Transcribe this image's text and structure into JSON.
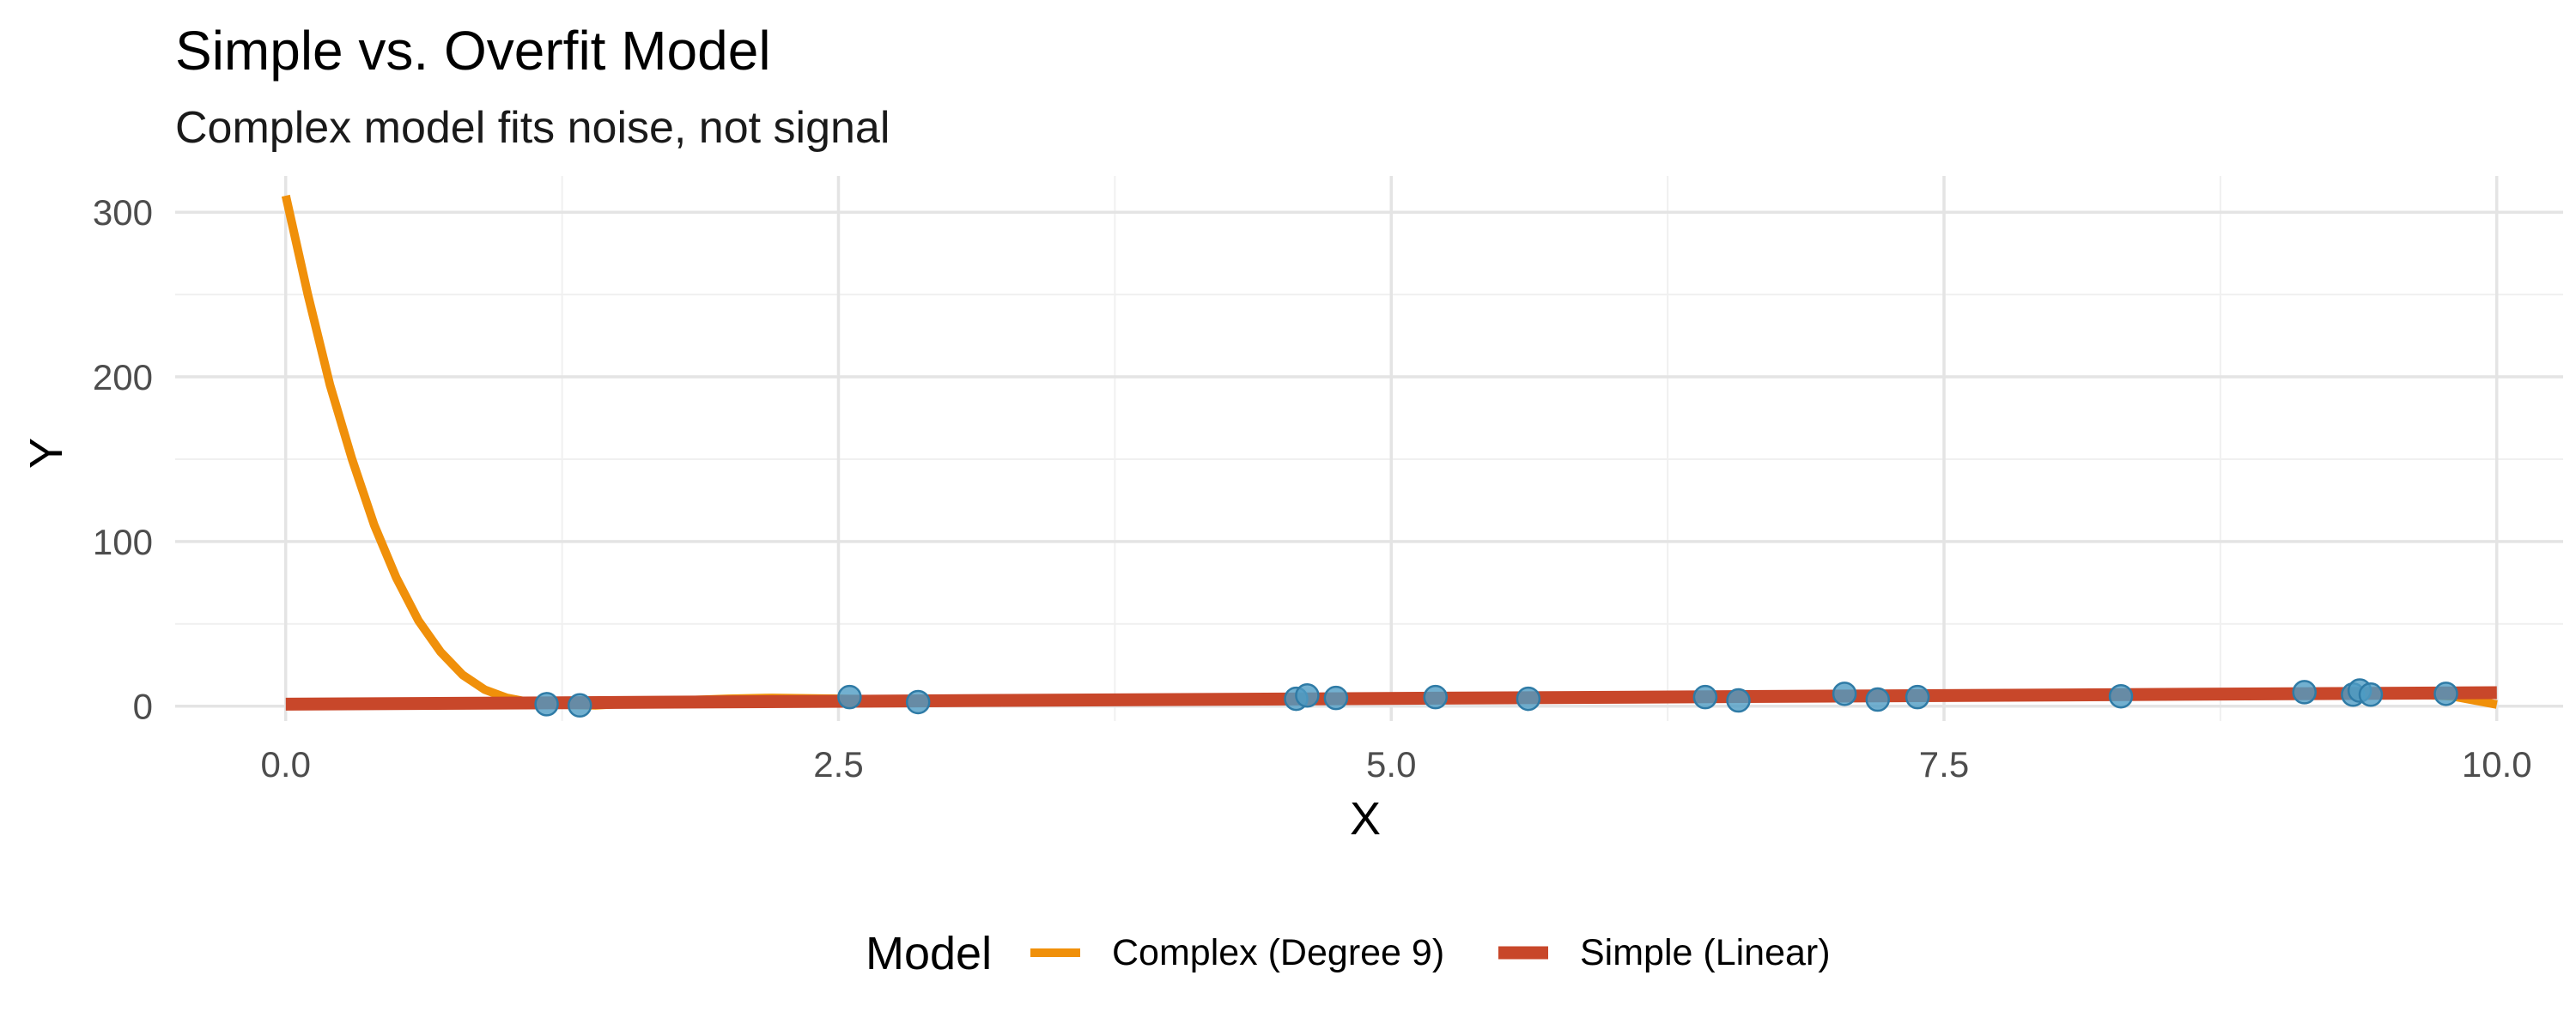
{
  "chart_data": {
    "type": "line",
    "title": "Simple vs. Overfit Model",
    "subtitle": "Complex model fits noise, not signal",
    "xlabel": "X",
    "ylabel": "Y",
    "xlim": [
      -0.5,
      10.3
    ],
    "ylim": [
      -9,
      322
    ],
    "x_ticks": [
      0.0,
      2.5,
      5.0,
      7.5,
      10.0
    ],
    "x_tick_labels": [
      "0.0",
      "2.5",
      "5.0",
      "7.5",
      "10.0"
    ],
    "y_ticks": [
      0,
      100,
      200,
      300
    ],
    "y_tick_labels": [
      "0",
      "100",
      "200",
      "300"
    ],
    "grid": true,
    "legend_position": "bottom",
    "legend_title": "Model",
    "points": {
      "color": "#4f9cc4",
      "x": [
        1.18,
        1.33,
        2.55,
        2.86,
        4.57,
        4.62,
        4.75,
        5.2,
        5.62,
        6.42,
        6.57,
        7.05,
        7.2,
        7.38,
        8.3,
        9.13,
        9.35,
        9.38,
        9.43,
        9.77
      ],
      "y": [
        1.2,
        0.5,
        5.5,
        2.5,
        4.5,
        6.5,
        5.0,
        5.5,
        4.5,
        5.5,
        3.5,
        7.5,
        4.0,
        5.5,
        6.0,
        8.5,
        7.0,
        9.5,
        7.0,
        7.5
      ]
    },
    "series": [
      {
        "name": "Complex (Degree 9)",
        "color": "#f0900a",
        "x": [
          0,
          0.1,
          0.2,
          0.3,
          0.4,
          0.5,
          0.6,
          0.7,
          0.8,
          0.9,
          1.0,
          1.1,
          1.2,
          1.4,
          1.6,
          1.8,
          2.0,
          2.2,
          2.5,
          3.0,
          3.5,
          4.0,
          4.5,
          5.0,
          5.5,
          6.0,
          6.5,
          7.0,
          7.5,
          8.0,
          8.5,
          9.0,
          9.5,
          9.8,
          10.0
        ],
        "y": [
          310,
          250,
          195,
          150,
          110,
          78,
          52,
          33,
          19,
          10,
          5,
          2.5,
          1,
          0.5,
          2,
          3.5,
          4.5,
          5,
          4.5,
          3.5,
          3,
          3.5,
          4.5,
          5,
          5,
          5,
          5.5,
          6,
          6.5,
          7,
          7.5,
          8,
          8,
          6,
          1
        ]
      },
      {
        "name": "Simple (Linear)",
        "color": "#c8472a",
        "x": [
          0,
          10
        ],
        "y": [
          1.2,
          8.2
        ]
      }
    ]
  }
}
